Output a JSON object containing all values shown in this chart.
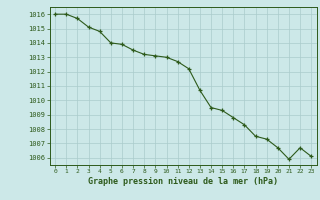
{
  "x": [
    0,
    1,
    2,
    3,
    4,
    5,
    6,
    7,
    8,
    9,
    10,
    11,
    12,
    13,
    14,
    15,
    16,
    17,
    18,
    19,
    20,
    21,
    22,
    23
  ],
  "y": [
    1016.0,
    1016.0,
    1015.7,
    1015.1,
    1014.8,
    1014.0,
    1013.9,
    1013.5,
    1013.2,
    1013.1,
    1013.0,
    1012.7,
    1012.2,
    1010.7,
    1009.5,
    1009.3,
    1008.8,
    1008.3,
    1007.5,
    1007.3,
    1006.7,
    1005.9,
    1006.7,
    1006.1
  ],
  "line_color": "#2d5a1b",
  "marker": "+",
  "bg_color": "#cce8e8",
  "grid_color": "#aacccc",
  "xlabel": "Graphe pression niveau de la mer (hPa)",
  "xlabel_color": "#2d5a1b",
  "tick_color": "#2d5a1b",
  "ylim_min": 1005.5,
  "ylim_max": 1016.5,
  "yticks": [
    1006,
    1007,
    1008,
    1009,
    1010,
    1011,
    1012,
    1013,
    1014,
    1015,
    1016
  ],
  "xticks": [
    0,
    1,
    2,
    3,
    4,
    5,
    6,
    7,
    8,
    9,
    10,
    11,
    12,
    13,
    14,
    15,
    16,
    17,
    18,
    19,
    20,
    21,
    22,
    23
  ],
  "font_family": "monospace"
}
